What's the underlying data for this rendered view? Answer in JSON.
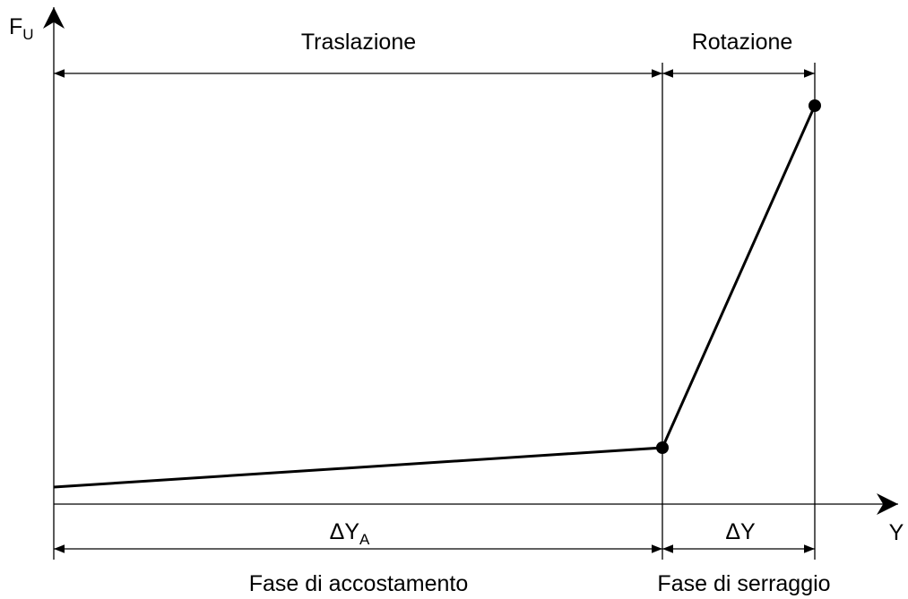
{
  "y_axis_label": {
    "main": "F",
    "sub": "U"
  },
  "x_axis_label": "Y",
  "top_labels": [
    "Traslazione",
    "Rotazione"
  ],
  "dimension_labels": [
    {
      "main": "ΔY",
      "sub": "A"
    },
    {
      "main": "ΔY"
    }
  ],
  "phase_labels": [
    "Fase di accostamento",
    "Fase di serraggio"
  ]
}
